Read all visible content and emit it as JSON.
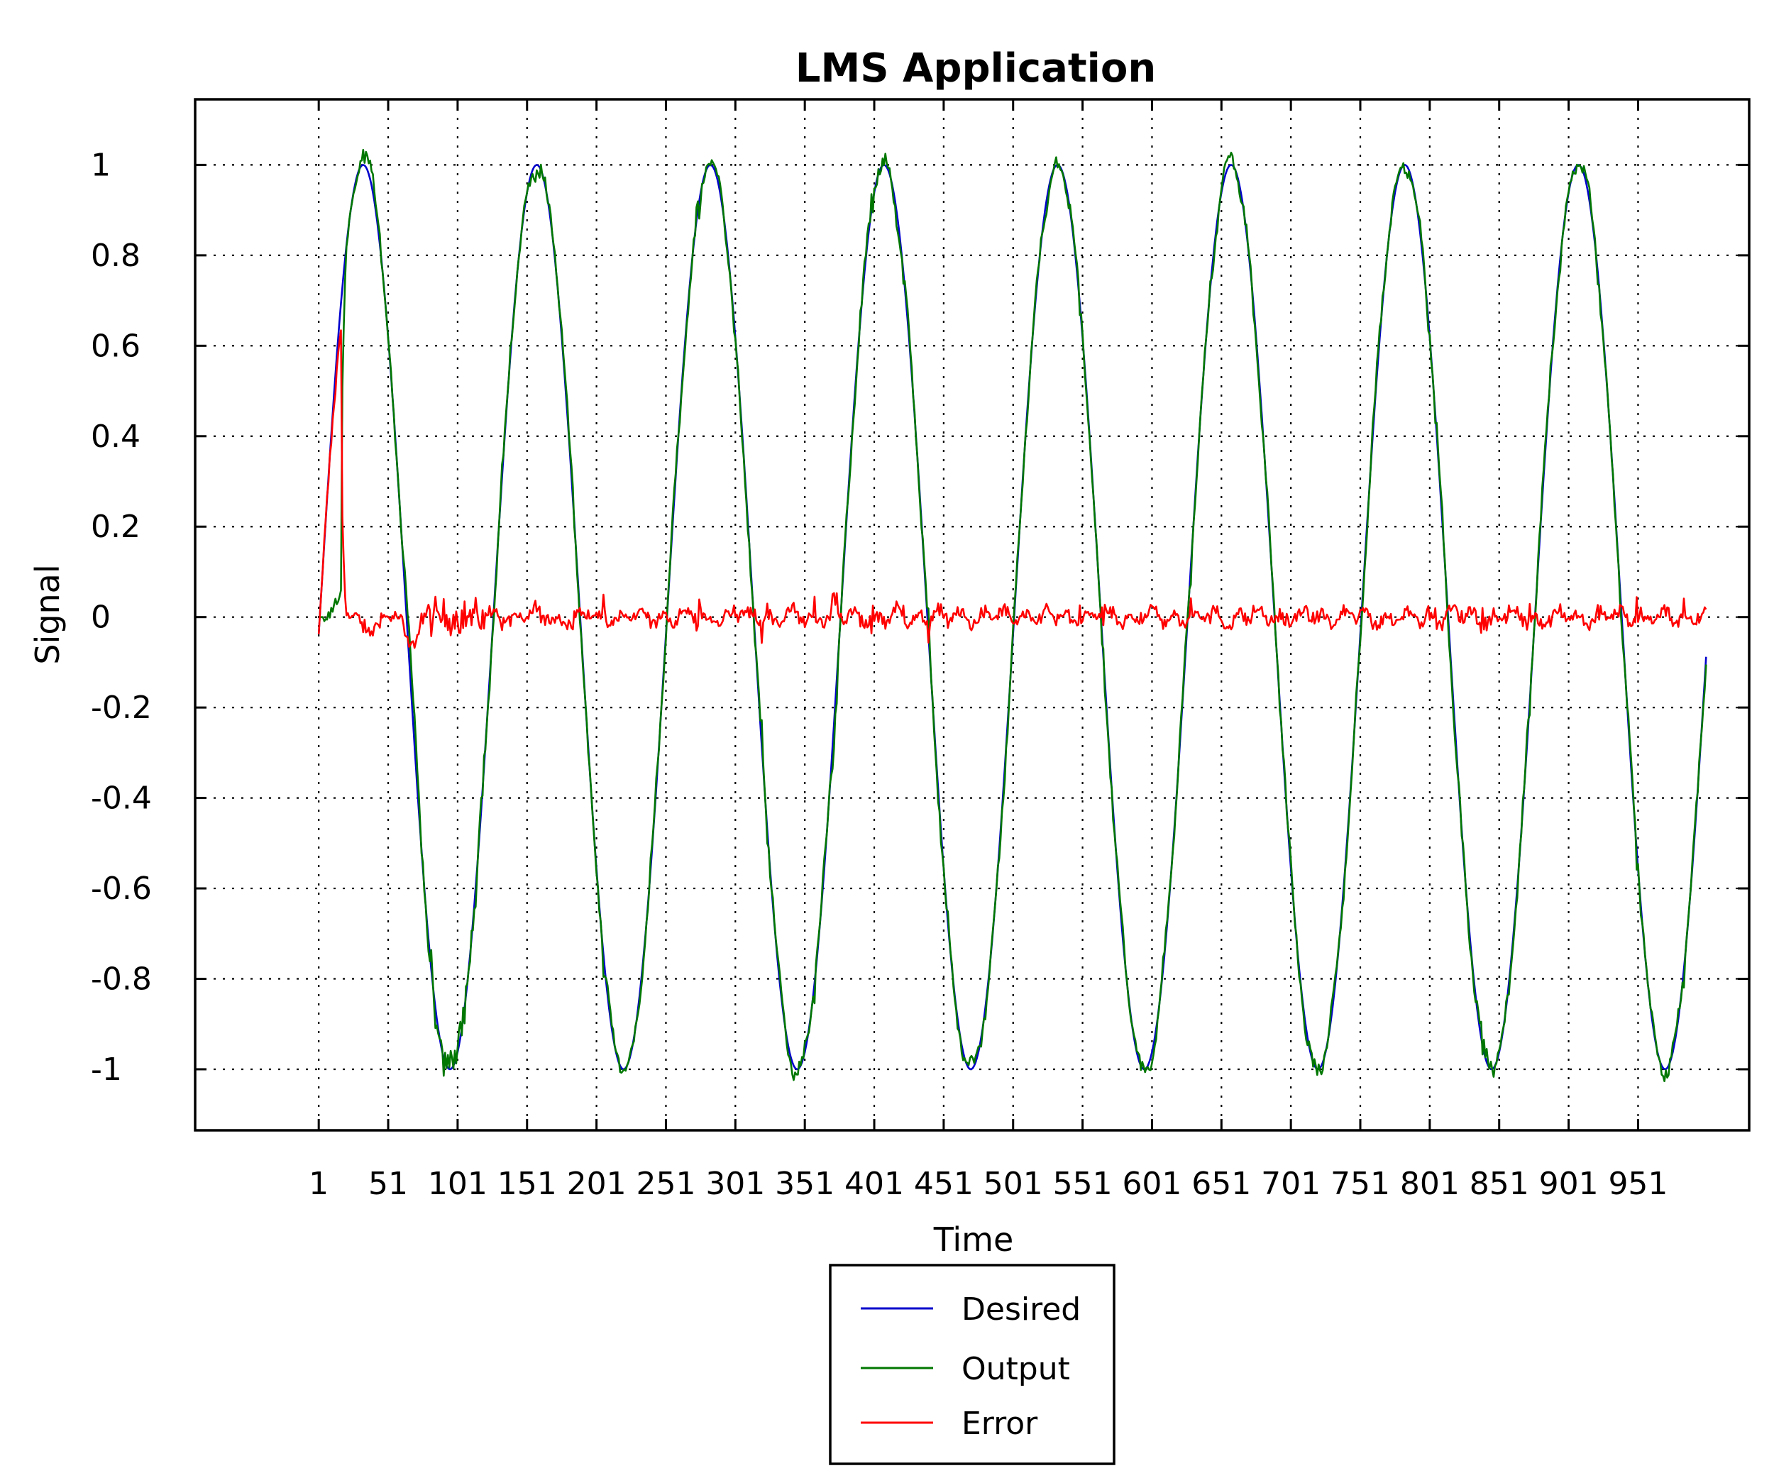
{
  "chart_data": {
    "type": "line",
    "title": "LMS Application",
    "xlabel": "Time",
    "ylabel": "Signal",
    "xlim": [
      -88,
      1031
    ],
    "ylim": [
      -1.135,
      1.145
    ],
    "x_ticks": [
      1,
      51,
      101,
      151,
      201,
      251,
      301,
      351,
      401,
      451,
      501,
      551,
      601,
      651,
      701,
      751,
      801,
      851,
      901,
      951
    ],
    "x_tick_labels": [
      "1",
      "51",
      "101",
      "151",
      "201",
      "251",
      "301",
      "351",
      "401",
      "451",
      "501",
      "551",
      "601",
      "651",
      "701",
      "751",
      "801",
      "851",
      "901",
      "951"
    ],
    "y_ticks": [
      1,
      0.8,
      0.6,
      0.4,
      0.2,
      0,
      -0.2,
      -0.4,
      -0.6,
      -0.8,
      -1
    ],
    "y_tick_labels": [
      "1",
      "0.8",
      "0.6",
      "0.4",
      "0.2",
      "0",
      "-0.2",
      "-0.4",
      "-0.6",
      "-0.8",
      "-1"
    ],
    "grid": true,
    "legend_position": "below plot, centered",
    "n_points": 1000,
    "desired_signal": {
      "form": "sine",
      "amplitude": 1,
      "period_samples": 125,
      "peak_at_sample": 33
    },
    "series": [
      {
        "name": "Desired",
        "color": "#0000cc"
      },
      {
        "name": "Output",
        "color": "#007700"
      },
      {
        "name": "Error",
        "color": "#ff0000"
      }
    ]
  }
}
